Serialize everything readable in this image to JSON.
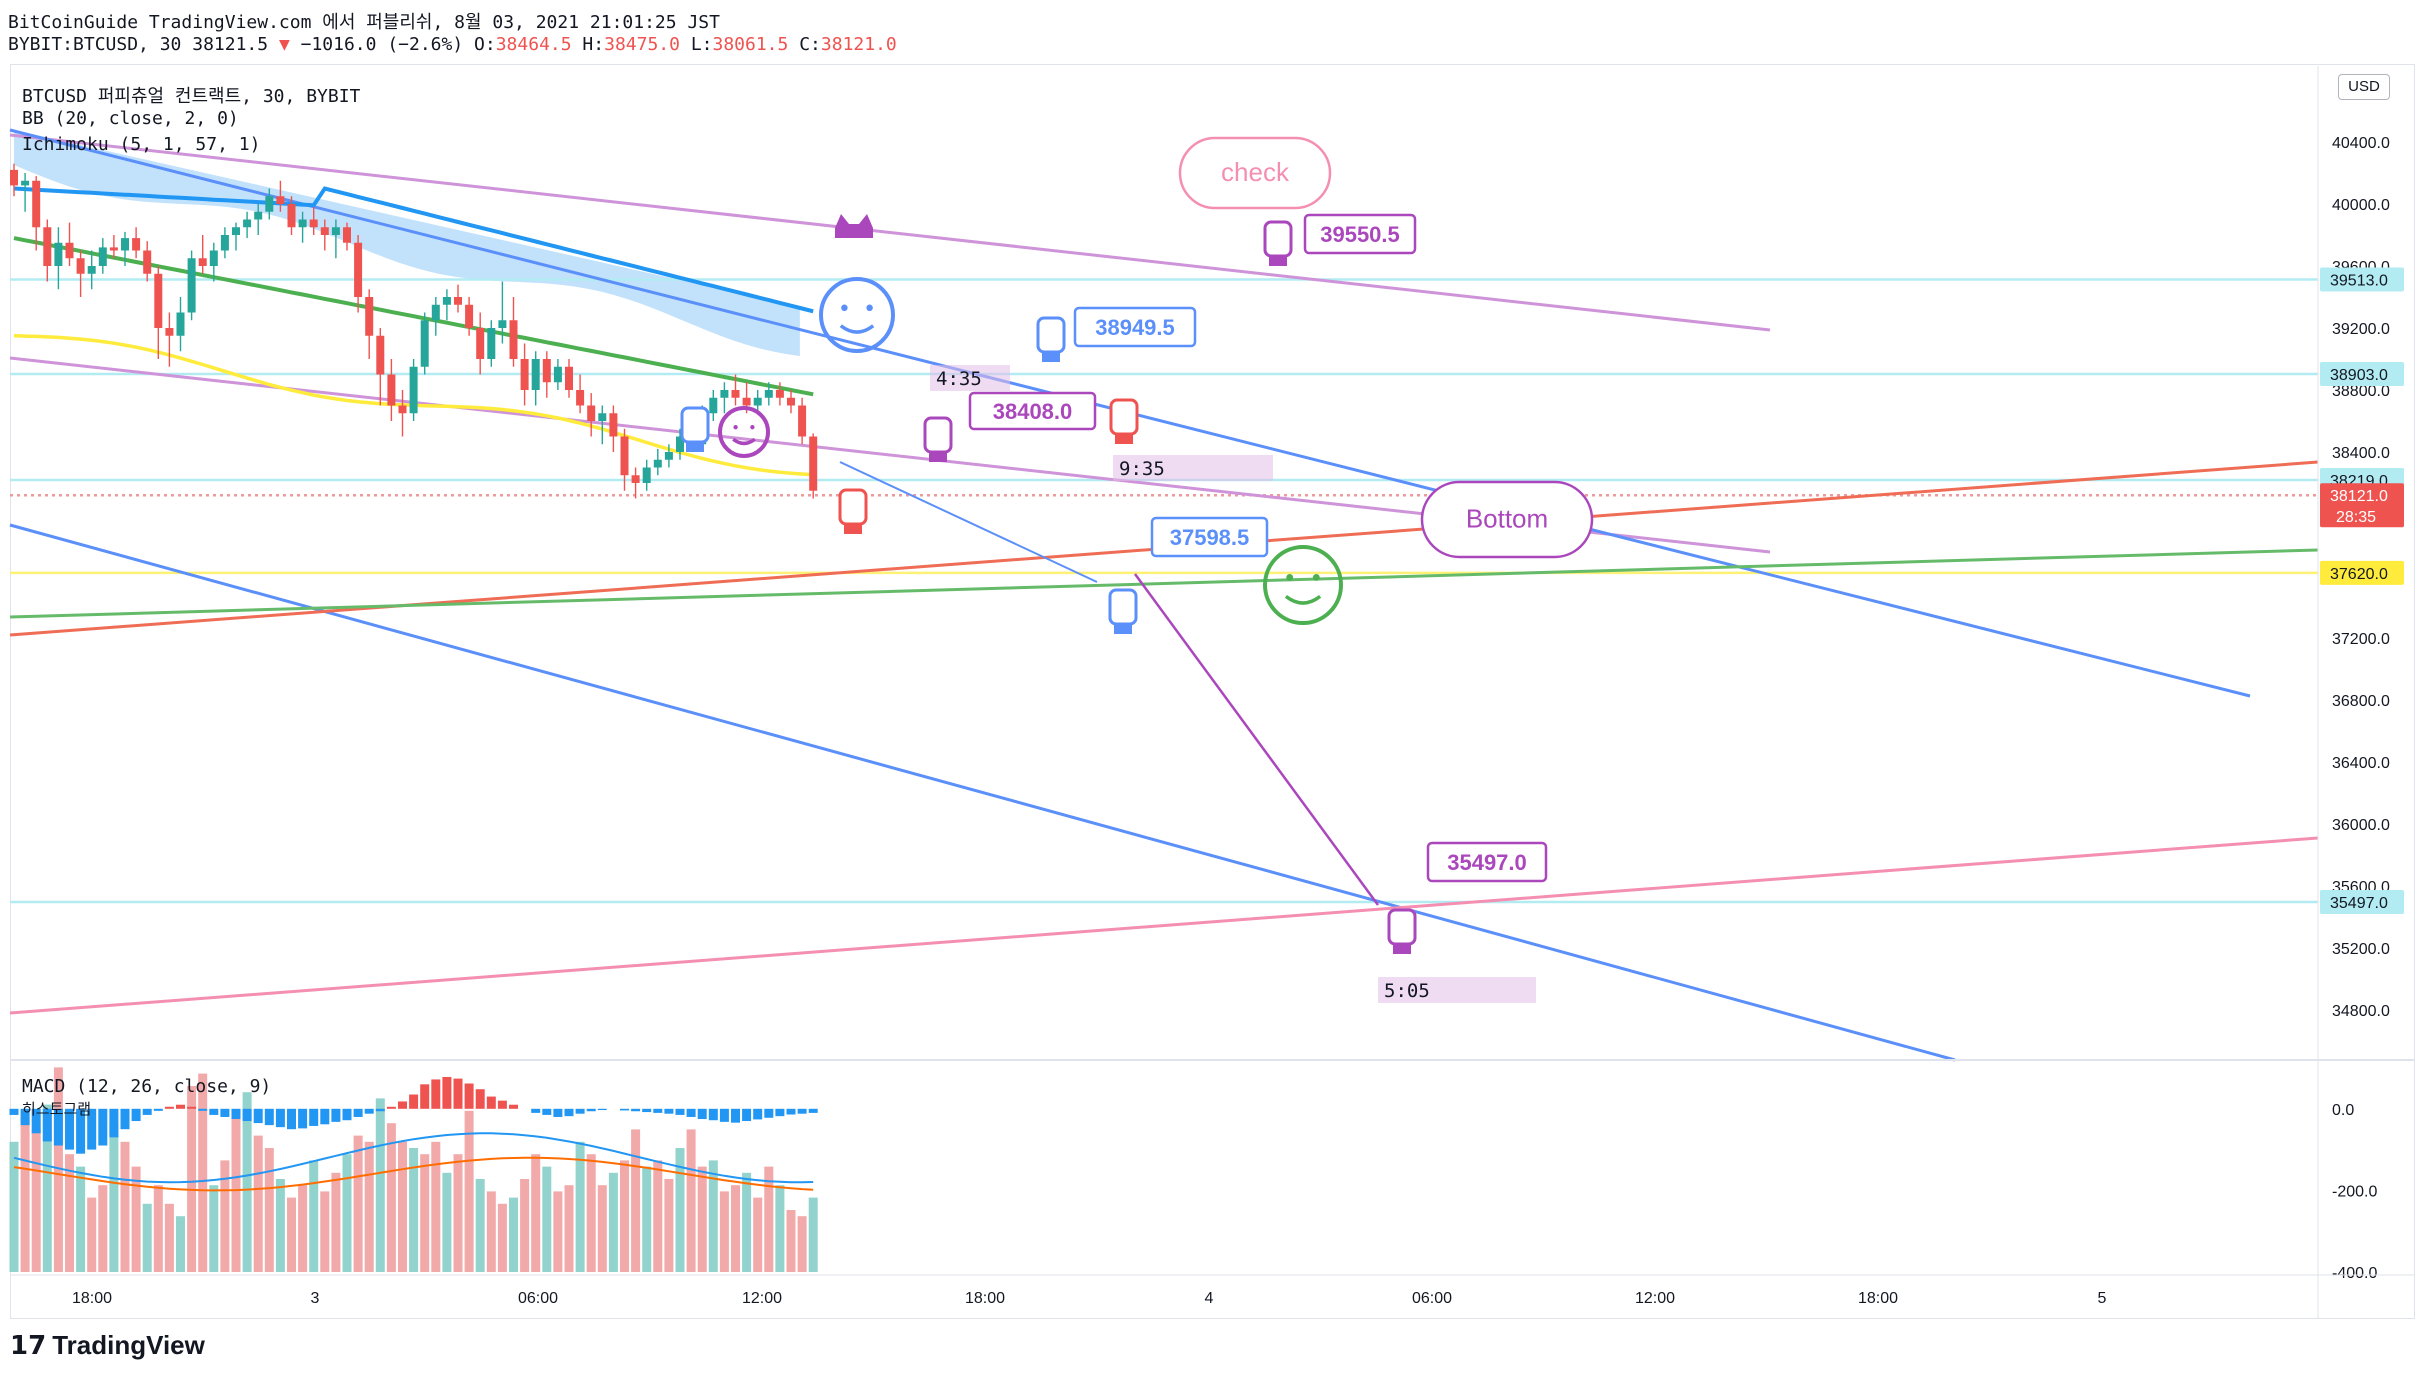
{
  "header": {
    "line1": "BitCoinGuide TradingView.com 에서 퍼블리쉬, 8월 03, 2021 21:01:25 JST",
    "symbol": "BYBIT:BTCUSD, 30",
    "last": "38121.5",
    "change": "−1016.0 (−2.6%)",
    "o_label": "O:",
    "o": "38464.5",
    "h_label": "H:",
    "h": "38475.0",
    "l_label": "L:",
    "l": "38061.5",
    "c_label": "C:",
    "c": "38121.0"
  },
  "legend": {
    "title": "BTCUSD 퍼피츄얼 컨트랙트, 30, BYBIT",
    "bb": "BB (20, close, 2, 0)",
    "ichimoku": "Ichimoku (5, 1, 57, 1)",
    "macd": "MACD (12, 26, close, 9)",
    "macd_sub": "히스토그램"
  },
  "currency": "USD",
  "footer": {
    "brand": "TradingView"
  },
  "colors": {
    "up": "#26a69a",
    "down": "#ef5350",
    "bb_upper": "#2196f3",
    "bb_basis": "#4caf50",
    "ichimoku": "#ffeb3b",
    "cloud": "#90caf9",
    "purple": "#ab47bc",
    "blue_line": "#5b8ff9",
    "pink_line": "#f48fb1",
    "orange_line": "#ef6c55",
    "green_line": "#66bb6a"
  },
  "chart_data": {
    "type": "candlestick",
    "timeframe": "30",
    "x_tick_labels": [
      "18:00",
      "3",
      "06:00",
      "12:00",
      "18:00",
      "4",
      "06:00",
      "12:00",
      "18:00",
      "5"
    ],
    "y_range": [
      34400,
      40800
    ],
    "y_tick_labels": [
      "40400.0",
      "40000.0",
      "39600.0",
      "39200.0",
      "38800.0",
      "38400.0",
      "37200.0",
      "36800.0",
      "36400.0",
      "36000.0",
      "35600.0",
      "35200.0",
      "34800.0"
    ],
    "price_tags": [
      {
        "label": "39513.0",
        "value": 39513,
        "bg": "#b2ebf2",
        "fg": "#131722"
      },
      {
        "label": "38903.0",
        "value": 38903,
        "bg": "#b2ebf2",
        "fg": "#131722"
      },
      {
        "label": "38219.0",
        "value": 38219,
        "bg": "#b2ebf2",
        "fg": "#131722"
      },
      {
        "label": "38121.0",
        "value": 38121,
        "bg": "#ef5350",
        "fg": "#ffffff",
        "sub": "28:35"
      },
      {
        "label": "37620.0",
        "value": 37620,
        "bg": "#ffeb3b",
        "fg": "#131722"
      },
      {
        "label": "35497.0",
        "value": 35497,
        "bg": "#b2ebf2",
        "fg": "#131722"
      }
    ],
    "horizontal_levels": [
      {
        "value": 39513,
        "color": "#b2ebf2"
      },
      {
        "value": 38903,
        "color": "#b2ebf2"
      },
      {
        "value": 38219,
        "color": "#b2ebf2"
      },
      {
        "value": 38121,
        "color": "#ef9a9a",
        "dashed": true
      },
      {
        "value": 37620,
        "color": "#fff176"
      },
      {
        "value": 35497,
        "color": "#b2ebf2"
      }
    ],
    "callouts": [
      {
        "text": "check",
        "color": "#f48fb1"
      },
      {
        "text": "39550.5",
        "color": "#ab47bc"
      },
      {
        "text": "38949.5",
        "color": "#5b8ff9"
      },
      {
        "text": "38408.0",
        "color": "#ab47bc"
      },
      {
        "text": "37598.5",
        "color": "#5b8ff9"
      },
      {
        "text": "Bottom",
        "color": "#ab47bc"
      },
      {
        "text": "35497.0",
        "color": "#ab47bc"
      }
    ],
    "time_labels": [
      "4:35",
      "9:35",
      "5:05"
    ],
    "candles": [
      [
        40220,
        40260,
        40050,
        40120
      ],
      [
        40120,
        40200,
        39950,
        40150
      ],
      [
        40150,
        40180,
        39700,
        39850
      ],
      [
        39850,
        39900,
        39500,
        39600
      ],
      [
        39600,
        39850,
        39450,
        39750
      ],
      [
        39750,
        39880,
        39600,
        39650
      ],
      [
        39650,
        39700,
        39400,
        39550
      ],
      [
        39550,
        39700,
        39450,
        39600
      ],
      [
        39600,
        39780,
        39550,
        39720
      ],
      [
        39720,
        39800,
        39650,
        39700
      ],
      [
        39700,
        39820,
        39600,
        39780
      ],
      [
        39780,
        39850,
        39650,
        39700
      ],
      [
        39700,
        39760,
        39500,
        39550
      ],
      [
        39550,
        39600,
        39000,
        39200
      ],
      [
        39200,
        39300,
        38950,
        39150
      ],
      [
        39150,
        39400,
        39050,
        39300
      ],
      [
        39300,
        39700,
        39250,
        39650
      ],
      [
        39650,
        39800,
        39550,
        39600
      ],
      [
        39600,
        39750,
        39500,
        39700
      ],
      [
        39700,
        39850,
        39650,
        39800
      ],
      [
        39800,
        39880,
        39700,
        39850
      ],
      [
        39850,
        39950,
        39780,
        39900
      ],
      [
        39900,
        40000,
        39800,
        39950
      ],
      [
        39950,
        40100,
        39900,
        40050
      ],
      [
        40050,
        40150,
        39950,
        40000
      ],
      [
        40000,
        40050,
        39800,
        39850
      ],
      [
        39850,
        39950,
        39750,
        39900
      ],
      [
        39900,
        39980,
        39800,
        39850
      ],
      [
        39850,
        39900,
        39700,
        39800
      ],
      [
        39800,
        39900,
        39650,
        39850
      ],
      [
        39850,
        39880,
        39700,
        39750
      ],
      [
        39750,
        39800,
        39300,
        39400
      ],
      [
        39400,
        39450,
        39000,
        39150
      ],
      [
        39150,
        39200,
        38700,
        38900
      ],
      [
        38900,
        39000,
        38600,
        38700
      ],
      [
        38700,
        38800,
        38500,
        38650
      ],
      [
        38650,
        39000,
        38600,
        38950
      ],
      [
        38950,
        39300,
        38900,
        39250
      ],
      [
        39250,
        39400,
        39150,
        39350
      ],
      [
        39350,
        39450,
        39250,
        39400
      ],
      [
        39400,
        39480,
        39300,
        39350
      ],
      [
        39350,
        39400,
        39150,
        39200
      ],
      [
        39200,
        39300,
        38900,
        39000
      ],
      [
        39000,
        39250,
        38950,
        39200
      ],
      [
        39200,
        39500,
        39100,
        39250
      ],
      [
        39250,
        39400,
        38950,
        39000
      ],
      [
        39000,
        39100,
        38700,
        38800
      ],
      [
        38800,
        39050,
        38700,
        39000
      ],
      [
        39000,
        39050,
        38750,
        38850
      ],
      [
        38850,
        39000,
        38800,
        38950
      ],
      [
        38950,
        39000,
        38750,
        38800
      ],
      [
        38800,
        38900,
        38650,
        38700
      ],
      [
        38700,
        38780,
        38500,
        38600
      ],
      [
        38600,
        38700,
        38450,
        38650
      ],
      [
        38650,
        38700,
        38400,
        38500
      ],
      [
        38500,
        38550,
        38150,
        38250
      ],
      [
        38250,
        38300,
        38100,
        38200
      ],
      [
        38200,
        38350,
        38150,
        38300
      ],
      [
        38300,
        38420,
        38250,
        38350
      ],
      [
        38350,
        38450,
        38300,
        38400
      ],
      [
        38400,
        38550,
        38350,
        38500
      ],
      [
        38500,
        38600,
        38400,
        38450
      ],
      [
        38450,
        38700,
        38400,
        38650
      ],
      [
        38650,
        38800,
        38600,
        38750
      ],
      [
        38750,
        38850,
        38650,
        38800
      ],
      [
        38800,
        38900,
        38700,
        38750
      ],
      [
        38750,
        38850,
        38650,
        38700
      ],
      [
        38700,
        38800,
        38650,
        38750
      ],
      [
        38750,
        38850,
        38700,
        38800
      ],
      [
        38800,
        38850,
        38700,
        38750
      ],
      [
        38750,
        38800,
        38650,
        38700
      ],
      [
        38700,
        38750,
        38450,
        38500
      ],
      [
        38500,
        38520,
        38100,
        38150
      ]
    ],
    "macd_histogram": [
      -15,
      -40,
      -60,
      -80,
      -90,
      -100,
      -110,
      -100,
      -90,
      -70,
      -50,
      -30,
      -15,
      -5,
      5,
      10,
      5,
      -5,
      -15,
      -20,
      -25,
      -30,
      -35,
      -40,
      -45,
      -50,
      -48,
      -42,
      -38,
      -32,
      -28,
      -20,
      -12,
      -6,
      5,
      18,
      35,
      60,
      72,
      78,
      74,
      62,
      48,
      30,
      20,
      10,
      0,
      -10,
      -15,
      -20,
      -18,
      -12,
      -6,
      -3,
      0,
      -4,
      -6,
      -8,
      -10,
      -12,
      -15,
      -20,
      -25,
      -28,
      -32,
      -34,
      -30,
      -26,
      -22,
      -18,
      -14,
      -12,
      -10
    ],
    "macd_volume_like": [
      210,
      250,
      230,
      270,
      330,
      190,
      170,
      120,
      140,
      240,
      210,
      170,
      110,
      140,
      110,
      90,
      300,
      320,
      140,
      180,
      250,
      290,
      220,
      200,
      150,
      120,
      140,
      180,
      130,
      160,
      190,
      220,
      210,
      280,
      240,
      210,
      200,
      190,
      210,
      160,
      190,
      260,
      150,
      130,
      110,
      120,
      150,
      190,
      170,
      130,
      140,
      210,
      190,
      140,
      160,
      180,
      230,
      170,
      180,
      150,
      200,
      230,
      170,
      180,
      130,
      140,
      160,
      120,
      170,
      140,
      100,
      90,
      120
    ],
    "macd_yrange": [
      -400,
      100
    ],
    "macd_ticks": [
      "0.0",
      "-200.0",
      "-400.0"
    ]
  }
}
